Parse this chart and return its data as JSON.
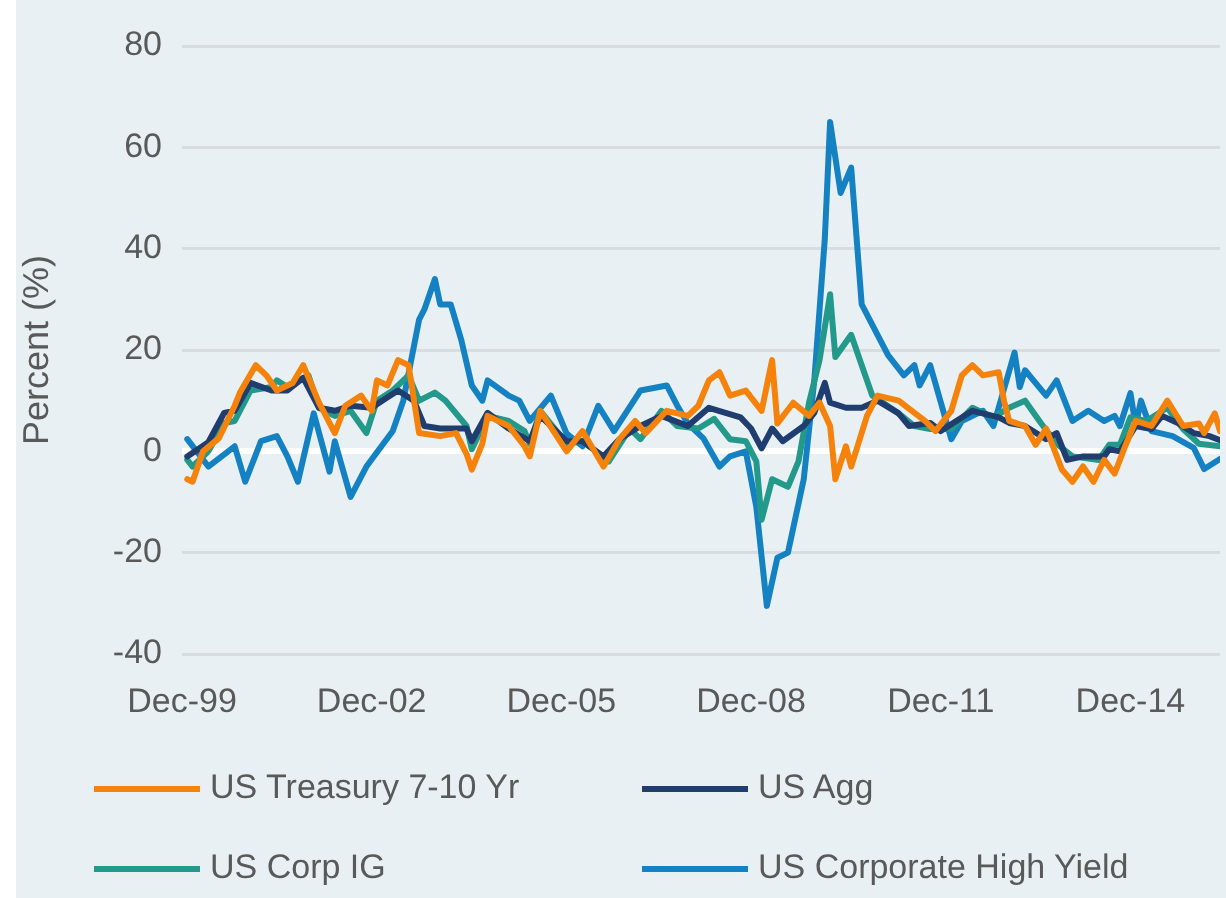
{
  "chart_data": {
    "type": "line",
    "ylabel": "Percent (%)",
    "xlim": [
      "1999-12",
      "2016-05"
    ],
    "xticks": [
      {
        "value": "1999-12",
        "label": "Dec-99"
      },
      {
        "value": "2002-12",
        "label": "Dec-02"
      },
      {
        "value": "2005-12",
        "label": "Dec-05"
      },
      {
        "value": "2008-12",
        "label": "Dec-08"
      },
      {
        "value": "2011-12",
        "label": "Dec-11"
      },
      {
        "value": "2014-12",
        "label": "Dec-14"
      }
    ],
    "ylim": [
      -40,
      80
    ],
    "yticks": [
      -40,
      -20,
      0,
      20,
      40,
      60,
      80
    ],
    "grid": "y",
    "legend": "bottom",
    "marker": "none",
    "line_style": "solid",
    "series": [
      {
        "name": "US Treasury 7-10 Yr",
        "color": "#f5820a",
        "x": [
          "2000-01",
          "2000-02",
          "2000-04",
          "2000-07",
          "2000-10",
          "2000-11",
          "2001-02",
          "2001-04",
          "2001-06",
          "2001-09",
          "2001-11",
          "2002-02",
          "2002-05",
          "2002-07",
          "2002-10",
          "2002-12",
          "2003-01",
          "2003-03",
          "2003-05",
          "2003-07",
          "2003-09",
          "2004-01",
          "2004-04",
          "2004-06",
          "2004-07",
          "2004-09",
          "2004-10",
          "2005-02",
          "2005-05",
          "2005-06",
          "2005-08",
          "2006-01",
          "2006-04",
          "2006-08",
          "2006-11",
          "2007-02",
          "2007-04",
          "2007-08",
          "2007-12",
          "2008-02",
          "2008-04",
          "2008-06",
          "2008-08",
          "2008-11",
          "2009-02",
          "2009-04",
          "2009-05",
          "2009-08",
          "2009-11",
          "2010-01",
          "2010-03",
          "2010-04",
          "2010-06",
          "2010-07",
          "2010-10",
          "2010-12",
          "2011-04",
          "2011-09",
          "2011-11",
          "2012-02",
          "2012-04",
          "2012-06",
          "2012-08",
          "2012-11",
          "2012-12",
          "2013-01",
          "2013-04",
          "2013-06",
          "2013-08",
          "2013-11",
          "2014-01",
          "2014-03",
          "2014-05",
          "2014-07",
          "2014-09",
          "2014-11",
          "2015-01",
          "2015-04",
          "2015-07",
          "2015-10",
          "2016-01",
          "2016-02",
          "2016-04",
          "2016-05"
        ],
        "values": [
          -5.5,
          -6,
          0,
          2.6,
          9,
          11.6,
          17,
          15,
          12,
          13.5,
          17,
          9.6,
          3.6,
          9,
          11,
          8,
          14,
          13,
          18,
          17,
          3.6,
          3,
          3.6,
          -0.5,
          -3.6,
          1.5,
          7,
          5,
          1,
          -1,
          8,
          0,
          4,
          -3,
          2.4,
          6,
          3.6,
          8,
          7,
          9,
          14,
          15.6,
          11,
          12,
          8,
          18,
          5.5,
          9.6,
          7,
          9.6,
          5,
          -5.5,
          1,
          -3,
          7,
          11,
          10,
          6,
          4,
          8,
          15,
          17,
          15,
          15.6,
          10,
          6,
          5,
          1.3,
          4.5,
          -3.6,
          -6,
          -3,
          -6,
          -1.7,
          -4.4,
          1,
          6,
          5,
          10,
          5,
          5.5,
          3.6,
          7.5,
          4
        ]
      },
      {
        "name": "US Agg",
        "color": "#1f3d6e",
        "x": [
          "2000-01",
          "2000-05",
          "2000-08",
          "2000-10",
          "2001-01",
          "2001-05",
          "2001-08",
          "2001-11",
          "2002-02",
          "2002-05",
          "2002-08",
          "2002-12",
          "2003-02",
          "2003-05",
          "2003-08",
          "2003-10",
          "2004-01",
          "2004-06",
          "2004-07",
          "2004-10",
          "2005-02",
          "2005-06",
          "2005-08",
          "2006-01",
          "2006-04",
          "2006-08",
          "2006-11",
          "2007-03",
          "2007-07",
          "2007-12",
          "2008-04",
          "2008-10",
          "2008-12",
          "2009-02",
          "2009-04",
          "2009-06",
          "2009-10",
          "2009-12",
          "2010-02",
          "2010-03",
          "2010-06",
          "2010-09",
          "2010-12",
          "2011-04",
          "2011-06",
          "2011-10",
          "2011-12",
          "2012-06",
          "2012-11",
          "2013-01",
          "2013-04",
          "2013-08",
          "2013-10",
          "2013-12",
          "2014-03",
          "2014-07",
          "2014-08",
          "2014-10",
          "2015-01",
          "2015-04",
          "2015-06",
          "2015-09",
          "2015-12",
          "2016-03",
          "2016-05"
        ],
        "values": [
          -1,
          1.8,
          7.6,
          8,
          13.5,
          12,
          12,
          14.5,
          8.6,
          8,
          9,
          8.6,
          10,
          12,
          10,
          5,
          4.5,
          4.5,
          2,
          7.6,
          4.5,
          2,
          7,
          2,
          2,
          -1,
          2.4,
          5,
          7,
          5,
          8.6,
          6.7,
          4.5,
          0.6,
          4.5,
          2,
          5,
          7.6,
          13.5,
          9.6,
          8.6,
          8.6,
          10,
          7.5,
          5,
          5.6,
          4,
          8,
          6.7,
          5.6,
          5,
          2.4,
          3.6,
          -1.7,
          -1,
          -1,
          0.4,
          0,
          5,
          4.4,
          7,
          5.6,
          3.6,
          3,
          2.2
        ]
      },
      {
        "name": "US Corp IG",
        "color": "#22998a",
        "x": [
          "2000-01",
          "2000-02",
          "2000-05",
          "2000-08",
          "2000-10",
          "2001-01",
          "2001-05",
          "2001-06",
          "2001-08",
          "2001-12",
          "2002-02",
          "2002-05",
          "2002-08",
          "2002-11",
          "2003-01",
          "2003-04",
          "2003-07",
          "2003-09",
          "2003-12",
          "2004-02",
          "2004-06",
          "2004-07",
          "2004-10",
          "2005-02",
          "2005-05",
          "2005-06",
          "2005-08",
          "2006-01",
          "2006-04",
          "2006-09",
          "2007-01",
          "2007-03",
          "2007-07",
          "2007-10",
          "2008-02",
          "2008-05",
          "2008-08",
          "2008-11",
          "2009-01",
          "2009-02",
          "2009-04",
          "2009-07",
          "2009-09",
          "2009-11",
          "2010-01",
          "2010-03",
          "2010-04",
          "2010-07",
          "2010-09",
          "2010-11",
          "2011-04",
          "2011-07",
          "2011-10",
          "2012-02",
          "2012-06",
          "2012-10",
          "2013-01",
          "2013-04",
          "2013-07",
          "2013-10",
          "2014-01",
          "2014-06",
          "2014-08",
          "2014-10",
          "2014-12",
          "2015-03",
          "2015-07",
          "2015-10",
          "2016-01",
          "2016-05"
        ],
        "values": [
          -1.7,
          -3,
          0,
          5.6,
          6,
          12,
          12.7,
          14,
          12.7,
          15,
          8.6,
          7,
          8,
          3.6,
          10,
          12,
          15,
          10,
          11.6,
          10,
          5,
          0.4,
          7,
          6,
          4,
          1.5,
          8,
          1.5,
          2,
          -2,
          4.5,
          2.4,
          8,
          5,
          4.5,
          6.4,
          2.4,
          2,
          -2,
          -13.5,
          -5.5,
          -7,
          -2,
          9.6,
          18,
          31,
          18.6,
          23,
          17,
          11,
          7.5,
          5,
          4.4,
          4.4,
          8.6,
          6.7,
          8.6,
          10,
          5.6,
          1.5,
          -1,
          -1.7,
          1.3,
          1.3,
          6.7,
          6,
          8.6,
          4.4,
          1.5,
          1
        ]
      },
      {
        "name": "US Corporate High Yield",
        "color": "#1482c2",
        "x": [
          "2000-01",
          "2000-05",
          "2000-10",
          "2000-12",
          "2001-03",
          "2001-06",
          "2001-08",
          "2001-10",
          "2002-01",
          "2002-04",
          "2002-05",
          "2002-08",
          "2002-11",
          "2003-04",
          "2003-06",
          "2003-09",
          "2003-10",
          "2003-12",
          "2004-01",
          "2004-03",
          "2004-05",
          "2004-07",
          "2004-09",
          "2004-10",
          "2005-02",
          "2005-04",
          "2005-06",
          "2005-10",
          "2006-01",
          "2006-04",
          "2006-07",
          "2006-10",
          "2007-03",
          "2007-08",
          "2007-10",
          "2007-12",
          "2008-03",
          "2008-06",
          "2008-08",
          "2008-11",
          "2009-01",
          "2009-03",
          "2009-05",
          "2009-07",
          "2009-10",
          "2009-12",
          "2010-02",
          "2010-03",
          "2010-05",
          "2010-07",
          "2010-09",
          "2010-12",
          "2011-02",
          "2011-05",
          "2011-07",
          "2011-08",
          "2011-10",
          "2012-02",
          "2012-04",
          "2012-08",
          "2012-10",
          "2013-02",
          "2013-03",
          "2013-04",
          "2013-08",
          "2013-10",
          "2014-01",
          "2014-04",
          "2014-07",
          "2014-09",
          "2014-10",
          "2014-12",
          "2015-01",
          "2015-02",
          "2015-04",
          "2015-08",
          "2015-12",
          "2016-02",
          "2016-05"
        ],
        "values": [
          2.4,
          -3,
          1,
          -6,
          2,
          3,
          -1,
          -6,
          7.5,
          -4,
          2,
          -9,
          -3,
          4,
          10,
          26,
          28,
          34,
          29,
          29,
          22,
          13,
          10,
          14,
          11,
          10,
          6,
          11,
          3.5,
          1,
          9,
          4,
          12,
          13,
          9,
          5.5,
          2.5,
          -3,
          -1,
          0,
          -11,
          -30.5,
          -21,
          -20,
          -5.5,
          14,
          42,
          65,
          51,
          56,
          29,
          23,
          19,
          15,
          17,
          13,
          17,
          2.4,
          6,
          8,
          5,
          19.5,
          12.7,
          16,
          11,
          14,
          6,
          8,
          6,
          7,
          5,
          11.5,
          5,
          10,
          4,
          3,
          0.7,
          -3.5,
          -1.5
        ]
      }
    ]
  }
}
